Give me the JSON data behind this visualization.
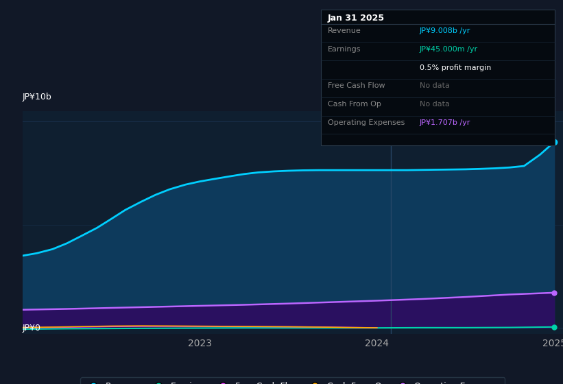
{
  "background_color": "#111827",
  "plot_bg_color": "#0f1f30",
  "ylabel_top": "JP¥10b",
  "ylabel_bottom": "JP¥0",
  "x_ticks": [
    2023,
    2024,
    2025
  ],
  "ylim_min": -0.3,
  "ylim_max": 10.5,
  "xlim_min": 2022.0,
  "xlim_max": 2025.05,
  "revenue_color": "#00cfff",
  "revenue_fill_color": "#0d3a5c",
  "earnings_color": "#00d4aa",
  "free_cash_flow_color": "#e040fb",
  "cash_from_op_color": "#ffaa00",
  "op_expenses_color": "#bb66ff",
  "op_expenses_fill_color": "#2a1060",
  "grid_color": "#1e3a5a",
  "vline_color": "#2a4a6a",
  "revenue_data": {
    "x": [
      2022.0,
      2022.08,
      2022.17,
      2022.25,
      2022.33,
      2022.42,
      2022.5,
      2022.58,
      2022.67,
      2022.75,
      2022.83,
      2022.92,
      2023.0,
      2023.08,
      2023.17,
      2023.25,
      2023.33,
      2023.42,
      2023.5,
      2023.58,
      2023.67,
      2023.75,
      2023.83,
      2023.92,
      2024.0,
      2024.08,
      2024.17,
      2024.25,
      2024.33,
      2024.42,
      2024.5,
      2024.58,
      2024.67,
      2024.75,
      2024.83,
      2024.92,
      2025.0
    ],
    "y": [
      3.5,
      3.62,
      3.82,
      4.1,
      4.45,
      4.85,
      5.28,
      5.72,
      6.12,
      6.45,
      6.72,
      6.95,
      7.1,
      7.22,
      7.35,
      7.46,
      7.54,
      7.59,
      7.62,
      7.64,
      7.65,
      7.65,
      7.65,
      7.65,
      7.65,
      7.65,
      7.65,
      7.66,
      7.67,
      7.68,
      7.69,
      7.71,
      7.74,
      7.78,
      7.85,
      8.4,
      9.008
    ]
  },
  "op_expenses_data": {
    "x": [
      2022.0,
      2022.25,
      2022.5,
      2022.75,
      2023.0,
      2023.25,
      2023.5,
      2023.75,
      2024.0,
      2024.25,
      2024.5,
      2024.75,
      2025.0
    ],
    "y": [
      0.88,
      0.92,
      0.97,
      1.02,
      1.07,
      1.12,
      1.18,
      1.25,
      1.32,
      1.4,
      1.5,
      1.62,
      1.707
    ]
  },
  "earnings_data": {
    "x": [
      2022.0,
      2022.25,
      2022.5,
      2022.75,
      2023.0,
      2023.25,
      2023.5,
      2023.75,
      2024.0,
      2024.25,
      2024.5,
      2024.75,
      2024.92,
      2025.0
    ],
    "y": [
      -0.06,
      -0.04,
      -0.03,
      -0.02,
      -0.01,
      0.0,
      0.0,
      0.0,
      0.0,
      0.01,
      0.01,
      0.02,
      0.038,
      0.045
    ]
  },
  "free_cash_flow_data": {
    "x": [
      2022.0,
      2022.17,
      2022.33,
      2022.5,
      2022.67,
      2022.83,
      2023.0,
      2023.17,
      2023.33,
      2023.5,
      2023.67,
      2023.83,
      2024.0
    ],
    "y": [
      0.01,
      0.025,
      0.045,
      0.065,
      0.075,
      0.075,
      0.07,
      0.065,
      0.06,
      0.055,
      0.045,
      0.025,
      0.005
    ]
  },
  "cash_from_op_data": {
    "x": [
      2022.0,
      2022.17,
      2022.33,
      2022.5,
      2022.67,
      2022.83,
      2023.0,
      2023.17,
      2023.33,
      2023.5,
      2023.67,
      2023.83,
      2024.0
    ],
    "y": [
      0.02,
      0.04,
      0.065,
      0.09,
      0.1,
      0.095,
      0.085,
      0.075,
      0.065,
      0.055,
      0.04,
      0.02,
      0.005
    ]
  },
  "vline_x": 2024.08,
  "dot_x": 2025.0,
  "legend_items": [
    {
      "label": "Revenue",
      "color": "#00cfff"
    },
    {
      "label": "Earnings",
      "color": "#00d4aa"
    },
    {
      "label": "Free Cash Flow",
      "color": "#e040fb"
    },
    {
      "label": "Cash From Op",
      "color": "#ffaa00"
    },
    {
      "label": "Operating Expenses",
      "color": "#bb66ff"
    }
  ],
  "tooltip": {
    "date": "Jan 31 2025",
    "rows": [
      {
        "label": "Revenue",
        "value": "JP¥9.008b /yr",
        "value_color": "#00cfff"
      },
      {
        "label": "Earnings",
        "value": "JP¥45.000m /yr",
        "value_color": "#00d4aa"
      },
      {
        "label": "",
        "value": "0.5% profit margin",
        "value_color": "#ffffff"
      },
      {
        "label": "Free Cash Flow",
        "value": "No data",
        "value_color": "#666666"
      },
      {
        "label": "Cash From Op",
        "value": "No data",
        "value_color": "#666666"
      },
      {
        "label": "Operating Expenses",
        "value": "JP¥1.707b /yr",
        "value_color": "#bb66ff"
      }
    ]
  }
}
